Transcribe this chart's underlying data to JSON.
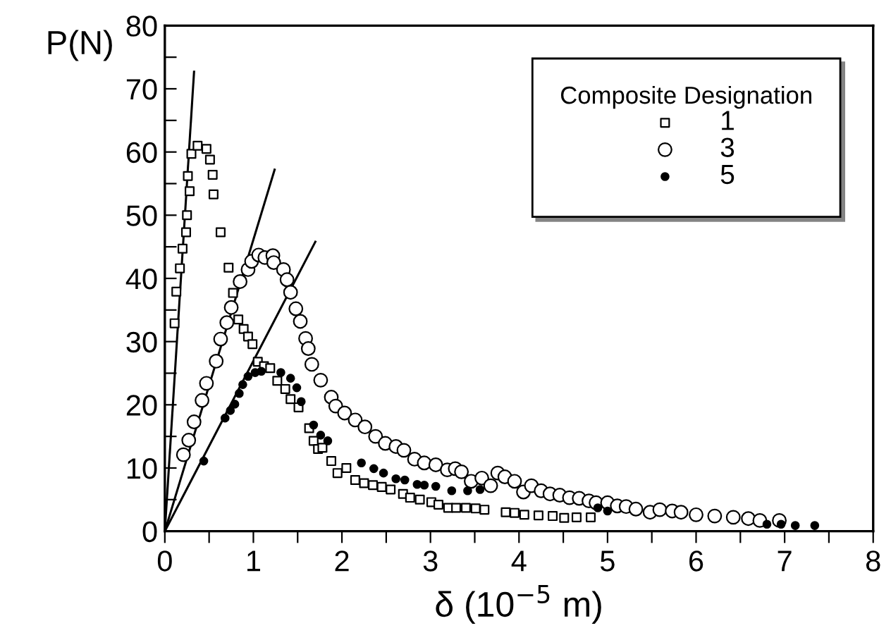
{
  "chart_data": {
    "type": "scatter",
    "xlabel": "δ (10$^{−5}$ m)",
    "ylabel": "P(N)",
    "legend_title": "Composite Designation",
    "legend": "top right",
    "grid": false,
    "xlim": [
      0,
      8
    ],
    "ylim": [
      0,
      80
    ],
    "xticks": [
      0,
      {
        "value": 0.5,
        "label": null
      },
      1,
      {
        "value": 1.5,
        "label": null
      },
      2,
      {
        "value": 2.5,
        "label": null
      },
      3,
      {
        "value": 3.5,
        "label": null
      },
      4,
      {
        "value": 4.5,
        "label": null
      },
      5,
      {
        "value": 5.5,
        "label": null
      },
      6,
      {
        "value": 6.5,
        "label": null
      },
      7,
      {
        "value": 7.5,
        "label": null
      },
      8
    ],
    "yticks": [
      0,
      {
        "value": 5,
        "label": null
      },
      10,
      {
        "value": 15,
        "label": null
      },
      20,
      {
        "value": 25,
        "label": null
      },
      30,
      {
        "value": 35,
        "label": null
      },
      40,
      {
        "value": 45,
        "label": null
      },
      50,
      {
        "value": 55,
        "label": null
      },
      60,
      {
        "value": 65,
        "label": null
      },
      70,
      {
        "value": 75,
        "label": null
      },
      80
    ],
    "series": [
      {
        "name": "1",
        "color": "#ffffff",
        "marker": "square",
        "x": [
          0.11,
          0.13,
          0.17,
          0.2,
          0.24,
          0.25,
          0.26,
          0.28,
          0.3,
          0.37,
          0.47,
          0.51,
          0.54,
          0.55,
          0.63,
          0.72,
          0.77,
          0.83,
          0.89,
          0.94,
          0.99,
          1.05,
          1.12,
          1.19,
          1.27,
          1.36,
          1.42,
          1.51,
          1.63,
          1.68,
          1.73,
          1.78,
          1.88,
          1.95,
          2.05,
          2.15,
          2.25,
          2.35,
          2.45,
          2.55,
          2.69,
          2.77,
          2.88,
          3.01,
          3.09,
          3.2,
          3.29,
          3.4,
          3.51,
          3.61,
          3.85,
          3.95,
          4.06,
          4.22,
          4.38,
          4.51,
          4.65,
          4.81
        ],
        "values": [
          32.9,
          37.9,
          41.6,
          44.7,
          47.3,
          50.0,
          56.2,
          53.8,
          59.7,
          61.0,
          60.5,
          58.8,
          56.4,
          53.3,
          47.3,
          41.7,
          37.7,
          33.5,
          32.0,
          30.8,
          29.6,
          26.8,
          26.1,
          25.8,
          23.8,
          22.5,
          20.9,
          19.6,
          16.3,
          14.3,
          13.0,
          13.2,
          11.1,
          9.2,
          10.0,
          8.1,
          7.6,
          7.3,
          7.0,
          6.6,
          5.9,
          5.3,
          5.0,
          4.6,
          4.2,
          3.7,
          3.7,
          3.7,
          3.6,
          3.4,
          3.0,
          2.9,
          2.6,
          2.5,
          2.4,
          2.1,
          2.2,
          2.2
        ]
      },
      {
        "name": "3",
        "color": "#ffffff",
        "marker": "circle",
        "x": [
          0.21,
          0.27,
          0.33,
          0.42,
          0.47,
          0.58,
          0.63,
          0.7,
          0.75,
          0.85,
          0.94,
          0.98,
          1.06,
          1.13,
          1.22,
          1.23,
          1.34,
          1.38,
          1.42,
          1.48,
          1.53,
          1.59,
          1.62,
          1.66,
          1.76,
          1.88,
          1.93,
          2.03,
          2.15,
          2.26,
          2.38,
          2.49,
          2.61,
          2.7,
          2.82,
          2.93,
          3.06,
          3.19,
          3.28,
          3.35,
          3.46,
          3.58,
          3.68,
          3.76,
          3.84,
          3.95,
          4.05,
          4.14,
          4.25,
          4.35,
          4.46,
          4.57,
          4.68,
          4.79,
          4.87,
          5.0,
          5.11,
          5.21,
          5.32,
          5.48,
          5.59,
          5.73,
          5.83,
          6.0,
          6.21,
          6.42,
          6.59,
          6.72,
          6.94
        ],
        "values": [
          12.1,
          14.4,
          17.3,
          20.7,
          23.4,
          26.9,
          30.4,
          33.0,
          35.4,
          39.5,
          41.4,
          42.7,
          43.7,
          43.3,
          43.6,
          42.5,
          41.4,
          39.8,
          37.8,
          35.2,
          33.2,
          30.5,
          28.9,
          26.4,
          23.9,
          21.2,
          19.8,
          18.7,
          17.6,
          16.5,
          15.0,
          13.9,
          13.4,
          12.8,
          11.4,
          10.8,
          10.5,
          9.7,
          9.9,
          9.4,
          7.9,
          8.4,
          7.2,
          9.2,
          8.6,
          7.9,
          6.2,
          7.2,
          6.4,
          5.9,
          5.7,
          5.3,
          5.2,
          4.8,
          4.5,
          4.5,
          4.0,
          3.9,
          3.5,
          3.0,
          3.4,
          3.2,
          3.0,
          2.6,
          2.4,
          2.2,
          2.0,
          1.7,
          1.7
        ]
      },
      {
        "name": "5",
        "color": "#000000",
        "marker": "circle",
        "x": [
          0.44,
          0.68,
          0.74,
          0.79,
          0.84,
          0.88,
          0.94,
          1.02,
          1.09,
          1.31,
          1.42,
          1.49,
          1.54,
          1.68,
          1.76,
          1.84,
          2.22,
          2.36,
          2.47,
          2.61,
          2.71,
          2.85,
          2.93,
          3.06,
          3.24,
          3.42,
          3.56,
          4.89,
          5.0,
          6.8,
          6.96,
          7.12,
          7.34
        ],
        "values": [
          11.1,
          17.9,
          19.1,
          20.1,
          21.8,
          23.2,
          24.5,
          25.1,
          25.3,
          25.1,
          24.2,
          22.7,
          20.5,
          16.8,
          15.2,
          14.3,
          10.8,
          9.9,
          9.2,
          8.3,
          8.1,
          7.4,
          7.3,
          7.1,
          6.4,
          6.4,
          6.6,
          3.7,
          3.2,
          1.1,
          1.1,
          0.9,
          0.9
        ]
      },
      {
        "type": "line",
        "color": "#000000",
        "line_style": "solid",
        "x": [
          0,
          0.33
        ],
        "values": [
          0,
          72.7
        ]
      },
      {
        "type": "line",
        "color": "#000000",
        "line_style": "solid",
        "x": [
          0,
          1.24
        ],
        "values": [
          0,
          57.2
        ]
      },
      {
        "type": "line",
        "color": "#000000",
        "line_style": "solid",
        "x": [
          0,
          1.7
        ],
        "values": [
          0,
          45.8
        ]
      }
    ]
  }
}
